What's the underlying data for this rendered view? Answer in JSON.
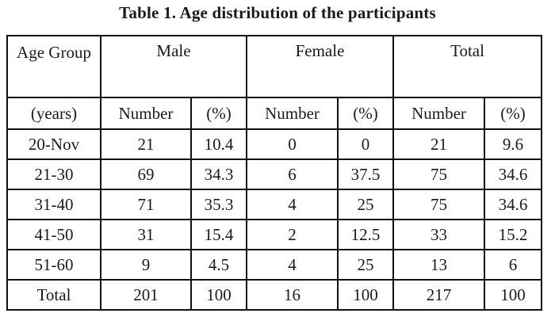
{
  "title": "Table 1. Age distribution of the participants",
  "header": {
    "age_group": "Age Group",
    "male": "Male",
    "female": "Female",
    "total": "Total",
    "years": "(years)",
    "number": "Number",
    "percent": "(%)"
  },
  "rows": [
    {
      "age": "20-Nov",
      "male_n": "21",
      "male_p": "10.4",
      "female_n": "0",
      "female_p": "0",
      "total_n": "21",
      "total_p": "9.6"
    },
    {
      "age": "21-30",
      "male_n": "69",
      "male_p": "34.3",
      "female_n": "6",
      "female_p": "37.5",
      "total_n": "75",
      "total_p": "34.6"
    },
    {
      "age": "31-40",
      "male_n": "71",
      "male_p": "35.3",
      "female_n": "4",
      "female_p": "25",
      "total_n": "75",
      "total_p": "34.6"
    },
    {
      "age": "41-50",
      "male_n": "31",
      "male_p": "15.4",
      "female_n": "2",
      "female_p": "12.5",
      "total_n": "33",
      "total_p": "15.2"
    },
    {
      "age": "51-60",
      "male_n": "9",
      "male_p": "4.5",
      "female_n": "4",
      "female_p": "25",
      "total_n": "13",
      "total_p": "6"
    },
    {
      "age": "Total",
      "male_n": "201",
      "male_p": "100",
      "female_n": "16",
      "female_p": "100",
      "total_n": "217",
      "total_p": "100"
    }
  ]
}
